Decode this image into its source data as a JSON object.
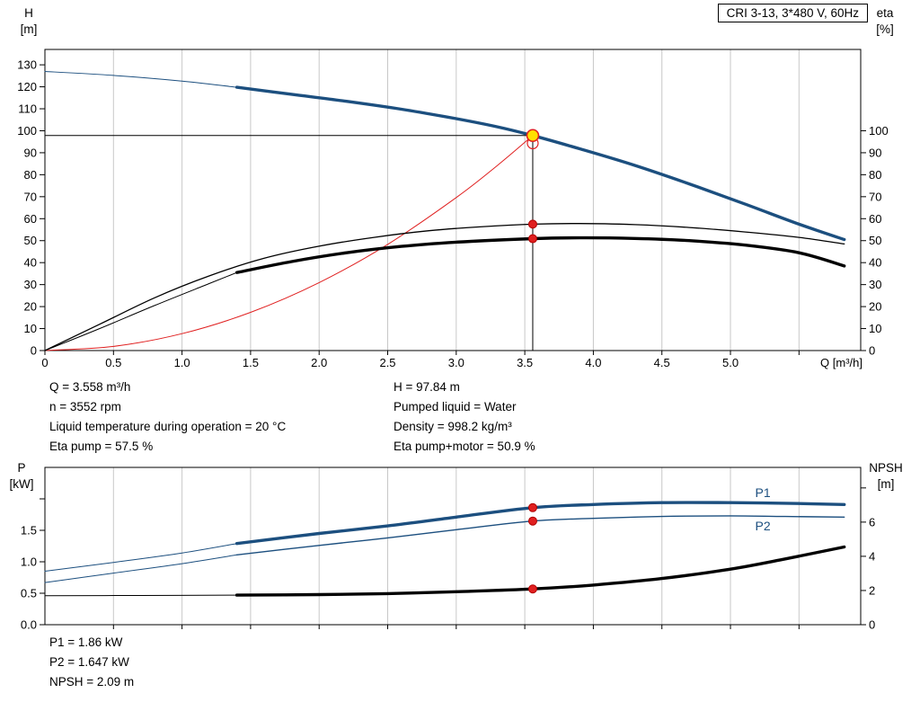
{
  "title_box": {
    "label": "CRI 3-13, 3*480 V, 60Hz"
  },
  "duty_info": {
    "left": [
      "Q = 3.558 m³/h",
      "n = 3552 rpm",
      "Liquid temperature during operation = 20 °C",
      "Eta pump = 57.5 %"
    ],
    "right": [
      "H = 97.84 m",
      "Pumped liquid = Water",
      "Density = 998.2 kg/m³",
      "Eta pump+motor = 50.9 %"
    ]
  },
  "power_info": [
    "P1 = 1.86 kW",
    "P2 = 1.647 kW",
    "NPSH = 2.09 m"
  ],
  "colors": {
    "curve_blue": "#1c4f7f",
    "duty_red": "#e02020",
    "duty_yellow": "#ffe000",
    "grid": "#c8c8c8"
  },
  "chart_data": [
    {
      "type": "line",
      "title": "CRI 3-13, 3*480 V, 60Hz",
      "xlabel": "Q [m³/h]",
      "y_left_label": [
        "H",
        "[m]"
      ],
      "y_right_label": [
        "eta",
        "[%]"
      ],
      "xlim": [
        0,
        5.95
      ],
      "ylim_left": [
        0,
        137
      ],
      "ylim_right": [
        0,
        137
      ],
      "grid_x": [
        0.5,
        1,
        1.5,
        2,
        2.5,
        3,
        3.5,
        4,
        4.5,
        5,
        5.5
      ],
      "xticks": [
        [
          0,
          "0"
        ],
        [
          0.5,
          "0.5"
        ],
        [
          1,
          "1.0"
        ],
        [
          1.5,
          "1.5"
        ],
        [
          2,
          "2.0"
        ],
        [
          2.5,
          "2.5"
        ],
        [
          3,
          "3.0"
        ],
        [
          3.5,
          "3.5"
        ],
        [
          4,
          "4.0"
        ],
        [
          4.5,
          "4.5"
        ],
        [
          5,
          "5.0"
        ],
        [
          5.5,
          ""
        ]
      ],
      "yticks_left": [
        [
          0,
          "0"
        ],
        [
          10,
          "10"
        ],
        [
          20,
          "20"
        ],
        [
          30,
          "30"
        ],
        [
          40,
          "40"
        ],
        [
          50,
          "50"
        ],
        [
          60,
          "60"
        ],
        [
          70,
          "70"
        ],
        [
          80,
          "80"
        ],
        [
          90,
          "90"
        ],
        [
          100,
          "100"
        ],
        [
          110,
          "110"
        ],
        [
          120,
          "120"
        ],
        [
          130,
          "130"
        ]
      ],
      "yticks_right": [
        [
          0,
          "0"
        ],
        [
          10,
          "10"
        ],
        [
          20,
          "20"
        ],
        [
          30,
          "30"
        ],
        [
          40,
          "40"
        ],
        [
          50,
          "50"
        ],
        [
          60,
          "60"
        ],
        [
          70,
          "70"
        ],
        [
          80,
          "80"
        ],
        [
          90,
          "90"
        ],
        [
          100,
          "100"
        ]
      ],
      "series": [
        {
          "name": "system-curve",
          "axis": "left",
          "color": "#e02020",
          "width": 1,
          "points": [
            [
              0,
              0
            ],
            [
              0.5,
              1.9
            ],
            [
              1,
              7.7
            ],
            [
              1.5,
              17.4
            ],
            [
              2,
              30.9
            ],
            [
              2.5,
              48.3
            ],
            [
              3,
              69.6
            ],
            [
              3.3,
              84.2
            ],
            [
              3.558,
              97.84
            ]
          ]
        },
        {
          "name": "hq-curve-extension",
          "axis": "left",
          "color": "#1c4f7f",
          "width": 1,
          "points": [
            [
              0,
              127
            ],
            [
              0.5,
              125.2
            ],
            [
              1,
              122.6
            ],
            [
              1.4,
              119.8
            ]
          ]
        },
        {
          "name": "hq-curve",
          "axis": "left",
          "color": "#1c4f7f",
          "width": 3.4,
          "points": [
            [
              1.4,
              119.8
            ],
            [
              1.8,
              116.6
            ],
            [
              2.2,
              113.4
            ],
            [
              2.6,
              109.8
            ],
            [
              3,
              105.5
            ],
            [
              3.3,
              101.8
            ],
            [
              3.558,
              97.84
            ],
            [
              3.9,
              91.8
            ],
            [
              4.3,
              84.3
            ],
            [
              4.7,
              75.8
            ],
            [
              5.1,
              66.8
            ],
            [
              5.5,
              57.5
            ],
            [
              5.83,
              50.5
            ]
          ]
        },
        {
          "name": "eta-pump-curve",
          "axis": "right",
          "color": "#000000",
          "width": 1.3,
          "points": [
            [
              0,
              0
            ],
            [
              0.4,
              12
            ],
            [
              0.8,
              24
            ],
            [
              1.2,
              34
            ],
            [
              1.6,
              42
            ],
            [
              2,
              47.5
            ],
            [
              2.4,
              51.5
            ],
            [
              2.8,
              54.5
            ],
            [
              3.2,
              56.4
            ],
            [
              3.558,
              57.5
            ],
            [
              3.9,
              57.8
            ],
            [
              4.3,
              57.3
            ],
            [
              4.7,
              56
            ],
            [
              5.1,
              54
            ],
            [
              5.5,
              51.5
            ],
            [
              5.83,
              48.5
            ]
          ]
        },
        {
          "name": "eta-pump-motor-extension",
          "axis": "right",
          "color": "#000000",
          "width": 1,
          "points": [
            [
              0,
              0
            ],
            [
              0.4,
              10
            ],
            [
              0.8,
              20.5
            ],
            [
              1.2,
              30.5
            ],
            [
              1.4,
              35.5
            ]
          ]
        },
        {
          "name": "eta-pump-motor-curve",
          "axis": "right",
          "color": "#000000",
          "width": 3.4,
          "points": [
            [
              1.4,
              35.5
            ],
            [
              1.8,
              40.5
            ],
            [
              2.2,
              44.5
            ],
            [
              2.6,
              47.4
            ],
            [
              3,
              49.3
            ],
            [
              3.558,
              50.9
            ],
            [
              3.9,
              51.3
            ],
            [
              4.3,
              51
            ],
            [
              4.7,
              50
            ],
            [
              5.1,
              48
            ],
            [
              5.5,
              44.5
            ],
            [
              5.83,
              38.5
            ]
          ]
        }
      ],
      "ref_lines": [
        {
          "type": "h",
          "v": 97.84,
          "x0": 0,
          "x1": 3.558,
          "axis": "left",
          "color": "#000000",
          "width": 1
        },
        {
          "type": "v",
          "x": 3.558,
          "v0": 0,
          "v1": 97.84,
          "axis": "left",
          "color": "#000000",
          "width": 1
        }
      ],
      "markers": [
        {
          "name": "system-end-ring",
          "x": 3.558,
          "v": 94.3,
          "axis": "left",
          "r": 6,
          "fill": "none",
          "stroke": "#e02020",
          "w": 1.2
        },
        {
          "name": "duty-point-marker",
          "x": 3.558,
          "v": 97.84,
          "axis": "left",
          "r": 6.5,
          "fill": "#ffe000",
          "stroke": "#e02020",
          "w": 1.6
        },
        {
          "name": "eta-pump-marker",
          "x": 3.558,
          "v": 57.5,
          "axis": "right",
          "r": 4.5,
          "fill": "#e02020",
          "stroke": "#b00000",
          "w": 1
        },
        {
          "name": "eta-pump-motor-marker",
          "x": 3.558,
          "v": 50.9,
          "axis": "right",
          "r": 4.5,
          "fill": "#e02020",
          "stroke": "#b00000",
          "w": 1
        }
      ],
      "labels": []
    },
    {
      "type": "line",
      "title": "",
      "xlabel": "",
      "y_left_label": [
        "P",
        "[kW]"
      ],
      "y_right_label": [
        "NPSH",
        "[m]"
      ],
      "xlim": [
        0,
        5.95
      ],
      "ylim_left": [
        0,
        2.5
      ],
      "ylim_right": [
        0,
        9.2
      ],
      "grid_x": [
        0.5,
        1,
        1.5,
        2,
        2.5,
        3,
        3.5,
        4,
        4.5,
        5,
        5.5
      ],
      "xticks": [
        [
          0.5,
          ""
        ],
        [
          1,
          ""
        ],
        [
          1.5,
          ""
        ],
        [
          2,
          ""
        ],
        [
          2.5,
          ""
        ],
        [
          3,
          ""
        ],
        [
          3.5,
          ""
        ],
        [
          4,
          ""
        ],
        [
          4.5,
          ""
        ],
        [
          5,
          ""
        ],
        [
          5.5,
          ""
        ]
      ],
      "yticks_left": [
        [
          0,
          "0.0"
        ],
        [
          0.5,
          "0.5"
        ],
        [
          1,
          "1.0"
        ],
        [
          1.5,
          "1.5"
        ],
        [
          2,
          ""
        ]
      ],
      "yticks_right": [
        [
          0,
          "0"
        ],
        [
          2,
          "2"
        ],
        [
          4,
          "4"
        ],
        [
          6,
          "6"
        ],
        [
          8,
          ""
        ]
      ],
      "series": [
        {
          "name": "p1-extension",
          "axis": "left",
          "color": "#1c4f7f",
          "width": 1,
          "points": [
            [
              0,
              0.85
            ],
            [
              0.5,
              0.99
            ],
            [
              1,
              1.14
            ],
            [
              1.4,
              1.29
            ]
          ]
        },
        {
          "name": "p2-extension",
          "axis": "left",
          "color": "#1c4f7f",
          "width": 1,
          "points": [
            [
              0,
              0.67
            ],
            [
              0.5,
              0.82
            ],
            [
              1,
              0.97
            ],
            [
              1.4,
              1.11
            ]
          ]
        },
        {
          "name": "npsh-extension",
          "axis": "right",
          "color": "#000000",
          "width": 1,
          "points": [
            [
              0,
              1.7
            ],
            [
              0.7,
              1.71
            ],
            [
              1.4,
              1.73
            ]
          ]
        },
        {
          "name": "p1-curve",
          "axis": "left",
          "color": "#1c4f7f",
          "width": 3.4,
          "points": [
            [
              1.4,
              1.29
            ],
            [
              2,
              1.45
            ],
            [
              2.5,
              1.57
            ],
            [
              3,
              1.71
            ],
            [
              3.558,
              1.86
            ],
            [
              4,
              1.91
            ],
            [
              4.5,
              1.94
            ],
            [
              5,
              1.94
            ],
            [
              5.4,
              1.93
            ],
            [
              5.83,
              1.91
            ]
          ]
        },
        {
          "name": "p2-curve",
          "axis": "left",
          "color": "#1c4f7f",
          "width": 1.4,
          "points": [
            [
              1.4,
              1.11
            ],
            [
              2,
              1.26
            ],
            [
              2.5,
              1.38
            ],
            [
              3,
              1.51
            ],
            [
              3.558,
              1.647
            ],
            [
              4,
              1.69
            ],
            [
              4.5,
              1.72
            ],
            [
              5,
              1.73
            ],
            [
              5.4,
              1.72
            ],
            [
              5.83,
              1.71
            ]
          ]
        },
        {
          "name": "npsh-curve",
          "axis": "right",
          "color": "#000000",
          "width": 3.4,
          "points": [
            [
              1.4,
              1.73
            ],
            [
              2,
              1.76
            ],
            [
              2.5,
              1.82
            ],
            [
              3,
              1.93
            ],
            [
              3.558,
              2.09
            ],
            [
              4,
              2.32
            ],
            [
              4.5,
              2.7
            ],
            [
              5,
              3.25
            ],
            [
              5.4,
              3.85
            ],
            [
              5.83,
              4.55
            ]
          ]
        }
      ],
      "ref_lines": [],
      "markers": [
        {
          "name": "p1-marker",
          "x": 3.558,
          "v": 1.86,
          "axis": "left",
          "r": 4.5,
          "fill": "#e02020",
          "stroke": "#b00000",
          "w": 1
        },
        {
          "name": "p2-marker",
          "x": 3.558,
          "v": 1.647,
          "axis": "left",
          "r": 4.5,
          "fill": "#e02020",
          "stroke": "#b00000",
          "w": 1
        },
        {
          "name": "npsh-marker",
          "x": 3.558,
          "v": 2.09,
          "axis": "right",
          "r": 4.5,
          "fill": "#e02020",
          "stroke": "#b00000",
          "w": 1
        }
      ],
      "labels": [
        {
          "text": "P1",
          "x": 5.18,
          "v": 2.03,
          "axis": "left",
          "color": "#1c4f7f",
          "anchor": "start"
        },
        {
          "text": "P2",
          "x": 5.18,
          "v": 1.5,
          "axis": "left",
          "color": "#1c4f7f",
          "anchor": "start"
        }
      ]
    }
  ]
}
